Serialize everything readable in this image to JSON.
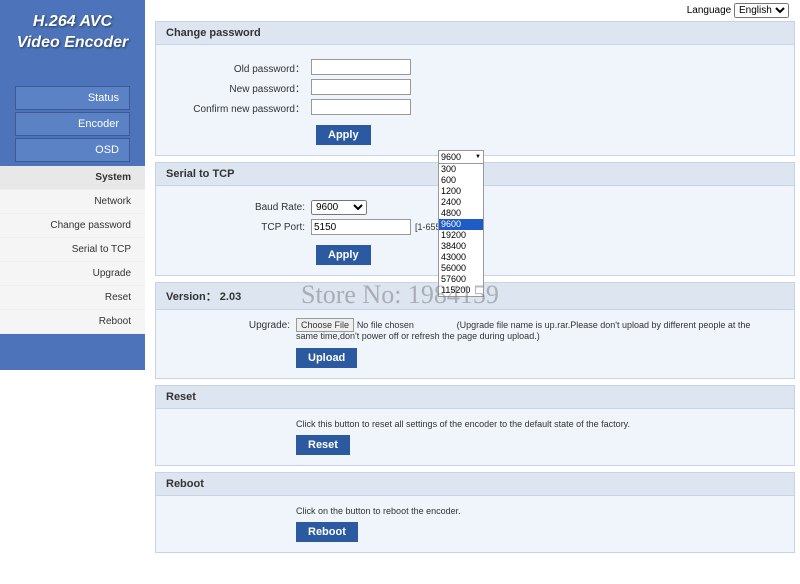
{
  "logo": {
    "line1": "H.264 AVC",
    "line2": "Video Encoder"
  },
  "lang": {
    "label": "Language",
    "selected": "English"
  },
  "nav": {
    "status": "Status",
    "encoder": "Encoder",
    "osd": "OSD"
  },
  "subnav": {
    "system": "System",
    "network": "Network",
    "changepw": "Change password",
    "serial": "Serial to TCP",
    "upgrade": "Upgrade",
    "reset": "Reset",
    "reboot": "Reboot"
  },
  "sections": {
    "changepw": {
      "title": "Change password",
      "old": "Old password：",
      "new": "New password：",
      "confirm": "Confirm new password：",
      "apply": "Apply"
    },
    "serial": {
      "title": "Serial to TCP",
      "baud": "Baud Rate:",
      "baud_val": "9600",
      "port": "TCP Port:",
      "port_val": "5150",
      "port_hint": "[1-65535]",
      "apply": "Apply"
    },
    "version": {
      "title": "Version： 2.03"
    },
    "upgrade": {
      "label": "Upgrade:",
      "choose": "Choose File",
      "nofile": "No file chosen",
      "note": "(Upgrade file name is up.rar.Please don't upload by different people at the same time,don't power off or refresh the page during upload.)",
      "btn": "Upload"
    },
    "reset": {
      "title": "Reset",
      "text": "Click this button to reset all settings of the encoder to the default state of the factory.",
      "btn": "Reset"
    },
    "reboot": {
      "title": "Reboot",
      "text": "Click on the button to reboot the encoder.",
      "btn": "Reboot"
    }
  },
  "dropdown": {
    "selected": "9600",
    "options": [
      "300",
      "600",
      "1200",
      "2400",
      "4800",
      "9600",
      "19200",
      "38400",
      "43000",
      "56000",
      "57600",
      "115200"
    ],
    "highlight_index": 5
  },
  "watermark": "Store No: 1984159"
}
